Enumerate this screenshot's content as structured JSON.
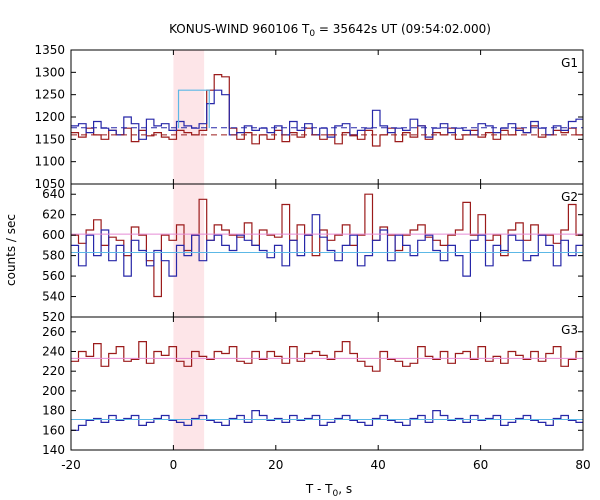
{
  "chart_data": {
    "type": "line",
    "title": "KONUS-WIND 960106 T",
    "title_subscript": "0",
    "title_rest": " = 35642s UT (09:54:02.000)",
    "xlabel": "T - T",
    "xlabel_subscript": "0",
    "xlabel_rest": ", s",
    "ylabel": "counts / sec",
    "xlim": [
      -20,
      80
    ],
    "x_ticks": [
      "-20",
      "0",
      "20",
      "40",
      "60",
      "80"
    ],
    "x_tick_values": [
      -20,
      0,
      20,
      40,
      60,
      80
    ],
    "highlight_interval": [
      0,
      6
    ],
    "highlight_color": "#fde5e8",
    "bin_start": -20,
    "bin_width": 1.472,
    "panels": [
      {
        "label": "G1",
        "ylim": [
          1050,
          1350
        ],
        "y_ticks": [
          "1050",
          "1100",
          "1150",
          "1200",
          "1250",
          "1300",
          "1350"
        ],
        "y_tick_values": [
          1050,
          1100,
          1150,
          1200,
          1250,
          1300,
          1350
        ],
        "series": [
          {
            "color": "#9b1b1b",
            "values": [
              1165,
              1155,
              1175,
              1160,
              1150,
              1170,
              1160,
              1175,
              1145,
              1170,
              1158,
              1165,
              1155,
              1150,
              1170,
              1165,
              1160,
              1170,
              1260,
              1295,
              1290,
              1175,
              1150,
              1165,
              1140,
              1160,
              1150,
              1170,
              1145,
              1165,
              1155,
              1175,
              1160,
              1150,
              1160,
              1140,
              1165,
              1158,
              1150,
              1170,
              1135,
              1160,
              1175,
              1145,
              1165,
              1155,
              1180,
              1150,
              1165,
              1160,
              1175,
              1150,
              1160,
              1170,
              1155,
              1165,
              1150,
              1170,
              1160,
              1175,
              1165,
              1180,
              1155,
              1160,
              1170,
              1165,
              1175,
              1160
            ]
          },
          {
            "color": "#2727a8",
            "values": [
              1180,
              1185,
              1165,
              1190,
              1175,
              1170,
              1160,
              1200,
              1185,
              1150,
              1195,
              1180,
              1185,
              1170,
              1190,
              1180,
              1175,
              1185,
              1230,
              1260,
              1250,
              1160,
              1165,
              1180,
              1170,
              1175,
              1165,
              1180,
              1160,
              1190,
              1170,
              1185,
              1160,
              1175,
              1155,
              1180,
              1185,
              1160,
              1170,
              1175,
              1215,
              1180,
              1165,
              1175,
              1170,
              1195,
              1180,
              1155,
              1175,
              1185,
              1165,
              1175,
              1170,
              1160,
              1185,
              1180,
              1165,
              1175,
              1185,
              1170,
              1165,
              1190,
              1175,
              1160,
              1180,
              1170,
              1190,
              1195
            ]
          }
        ],
        "reference_lines": [
          {
            "color": "#9b1b1b",
            "value": 1160,
            "dashed": true
          },
          {
            "color": "#2727a8",
            "value": 1176,
            "dashed": true
          },
          {
            "color": "#5cb8e6",
            "value": 1260,
            "from": 1,
            "to": 7,
            "dashed": false,
            "box": true
          }
        ]
      },
      {
        "label": "G2",
        "ylim": [
          520,
          650
        ],
        "y_ticks": [
          "520",
          "540",
          "560",
          "580",
          "600",
          "620",
          "640"
        ],
        "y_tick_values": [
          520,
          540,
          560,
          580,
          600,
          620,
          640
        ],
        "series": [
          {
            "color": "#9b1b1b",
            "values": [
              600,
              592,
              605,
              615,
              590,
              598,
              595,
              580,
              608,
              600,
              575,
              540,
              600,
              595,
              610,
              585,
              600,
              635,
              595,
              610,
              605,
              600,
              598,
              612,
              590,
              605,
              600,
              598,
              630,
              595,
              610,
              600,
              580,
              605,
              595,
              600,
              610,
              590,
              600,
              640,
              595,
              608,
              600,
              585,
              600,
              605,
              610,
              598,
              595,
              590,
              600,
              605,
              632,
              600,
              620,
              595,
              600,
              580,
              605,
              612,
              595,
              610,
              600,
              600,
              592,
              605,
              630,
              600
            ]
          },
          {
            "color": "#2727a8",
            "values": [
              590,
              570,
              600,
              580,
              605,
              575,
              590,
              560,
              595,
              585,
              570,
              585,
              575,
              560,
              590,
              580,
              600,
              575,
              595,
              600,
              590,
              585,
              600,
              595,
              590,
              585,
              578,
              590,
              570,
              595,
              580,
              600,
              620,
              598,
              585,
              575,
              590,
              600,
              570,
              580,
              595,
              605,
              575,
              600,
              590,
              580,
              595,
              600,
              585,
              575,
              590,
              580,
              560,
              595,
              600,
              570,
              590,
              585,
              600,
              595,
              575,
              580,
              600,
              590,
              570,
              595,
              580,
              590
            ]
          }
        ],
        "reference_lines": [
          {
            "color": "#e58bd5",
            "value": 601,
            "dashed": false
          },
          {
            "color": "#5cb8e6",
            "value": 583,
            "dashed": false
          }
        ]
      },
      {
        "label": "G3",
        "ylim": [
          140,
          275
        ],
        "y_ticks": [
          "140",
          "160",
          "180",
          "200",
          "220",
          "240",
          "260"
        ],
        "y_tick_values": [
          140,
          160,
          180,
          200,
          220,
          240,
          260
        ],
        "series": [
          {
            "color": "#9b1b1b",
            "values": [
              230,
              240,
              235,
              248,
              225,
              238,
              245,
              230,
              232,
              250,
              228,
              240,
              236,
              245,
              230,
              225,
              240,
              235,
              232,
              240,
              238,
              245,
              230,
              228,
              240,
              232,
              240,
              235,
              228,
              245,
              230,
              238,
              240,
              236,
              232,
              240,
              250,
              238,
              230,
              225,
              220,
              240,
              232,
              230,
              225,
              228,
              245,
              235,
              232,
              240,
              228,
              238,
              240,
              232,
              245,
              230,
              235,
              228,
              240,
              236,
              232,
              240,
              230,
              238,
              245,
              225,
              232,
              240
            ]
          },
          {
            "color": "#2727a8",
            "values": [
              160,
              165,
              170,
              172,
              168,
              175,
              170,
              172,
              175,
              165,
              168,
              172,
              175,
              170,
              168,
              165,
              172,
              175,
              170,
              168,
              165,
              172,
              175,
              168,
              180,
              175,
              170,
              172,
              168,
              175,
              170,
              172,
              175,
              165,
              168,
              172,
              175,
              170,
              168,
              165,
              172,
              175,
              170,
              168,
              165,
              172,
              175,
              168,
              180,
              175,
              170,
              172,
              168,
              175,
              170,
              172,
              175,
              165,
              168,
              172,
              175,
              170,
              168,
              165,
              172,
              175,
              170,
              168
            ]
          }
        ],
        "reference_lines": [
          {
            "color": "#e58bd5",
            "value": 233,
            "dashed": false
          },
          {
            "color": "#5cb8e6",
            "value": 171,
            "dashed": false
          }
        ]
      }
    ]
  }
}
